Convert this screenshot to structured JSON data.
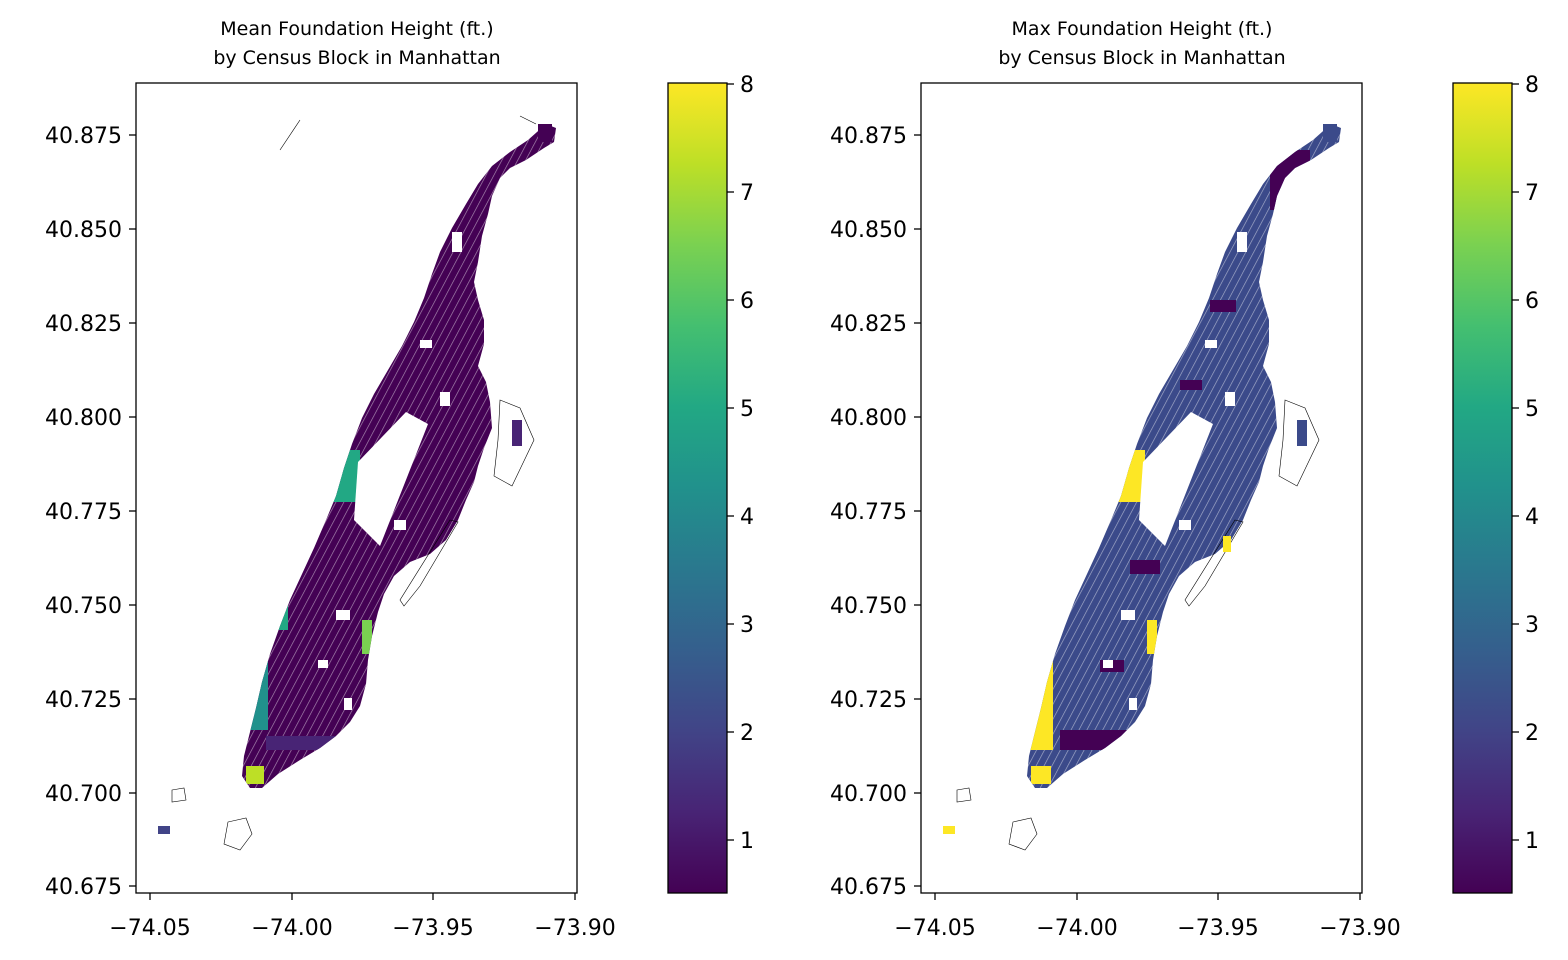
{
  "figure": {
    "panels": [
      {
        "title_line1": "Mean Foundation Height (ft.)",
        "title_line2": "by Census Block in Manhattan",
        "fill_scheme": "mean"
      },
      {
        "title_line1": "Max Foundation Height (ft.)",
        "title_line2": "by Census Block in Manhattan",
        "fill_scheme": "max"
      }
    ],
    "x_ticks": [
      "−74.05",
      "−74.00",
      "−73.95",
      "−73.90"
    ],
    "y_ticks": [
      "40.875",
      "40.850",
      "40.825",
      "40.800",
      "40.775",
      "40.750",
      "40.725",
      "40.700",
      "40.675"
    ],
    "colorbar_ticks": [
      "8",
      "7",
      "6",
      "5",
      "4",
      "3",
      "2",
      "1"
    ]
  },
  "chart_data": [
    {
      "type": "heatmap",
      "title": "Mean Foundation Height (ft.)\nby Census Block in Manhattan",
      "x_ticks": [
        -74.05,
        -74.0,
        -73.95,
        -73.9
      ],
      "y_ticks": [
        40.675,
        40.7,
        40.725,
        40.75,
        40.775,
        40.8,
        40.825,
        40.85,
        40.875
      ],
      "xlim": [
        -74.055,
        -73.9
      ],
      "ylim": [
        40.673,
        40.889
      ],
      "colorbar": {
        "cmap": "viridis",
        "range": [
          0.5,
          8
        ],
        "ticks": [
          1,
          2,
          3,
          4,
          5,
          6,
          7,
          8
        ]
      },
      "regions": [
        {
          "value": 0.7
        },
        {
          "value": 4.8
        },
        {
          "value": 4.6
        },
        {
          "value": 6.8
        },
        {
          "value": 7.8
        },
        {
          "value": 2.0
        }
      ]
    },
    {
      "type": "heatmap",
      "title": "Max Foundation Height (ft.)\nby Census Block in Manhattan",
      "x_ticks": [
        -74.05,
        -74.0,
        -73.95,
        -73.9
      ],
      "y_ticks": [
        40.675,
        40.7,
        40.725,
        40.75,
        40.775,
        40.8,
        40.825,
        40.85,
        40.875
      ],
      "xlim": [
        -74.055,
        -73.9
      ],
      "ylim": [
        40.673,
        40.889
      ],
      "colorbar": {
        "cmap": "viridis",
        "range": [
          0.5,
          8
        ],
        "ticks": [
          1,
          2,
          3,
          4,
          5,
          6,
          7,
          8
        ]
      },
      "regions": [
        {
          "value": 0.7
        },
        {
          "value": 2.0
        },
        {
          "value": 8.0
        },
        {
          "value": 8.0
        },
        {
          "value": 8.0
        },
        {
          "value": 7.8
        },
        {
          "value": 8.0
        }
      ]
    }
  ]
}
